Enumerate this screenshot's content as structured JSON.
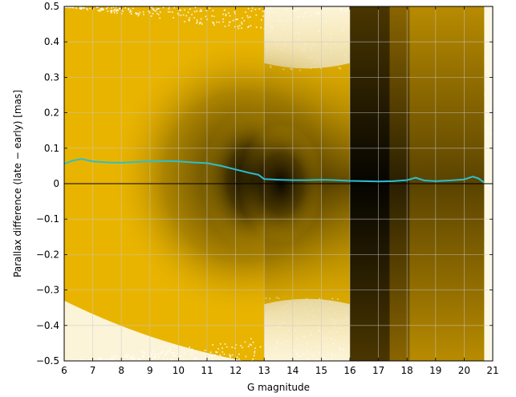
{
  "chart_data": {
    "type": "heatmap",
    "title": "",
    "xlabel": "G magnitude",
    "ylabel": "Parallax difference (late − early) [mas]",
    "xlim": [
      6,
      21
    ],
    "ylim": [
      -0.5,
      0.5
    ],
    "x_ticks": [
      6,
      7,
      8,
      9,
      10,
      11,
      12,
      13,
      14,
      15,
      16,
      17,
      18,
      19,
      20,
      21
    ],
    "x_tick_labels": [
      "6",
      "7",
      "8",
      "9",
      "10",
      "11",
      "12",
      "13",
      "14",
      "15",
      "16",
      "17",
      "18",
      "19",
      "20",
      "21"
    ],
    "y_ticks": [
      -0.5,
      -0.4,
      -0.3,
      -0.2,
      -0.1,
      0,
      0.1,
      0.2,
      0.3,
      0.4,
      0.5
    ],
    "y_tick_labels": [
      "−0.5",
      "−0.4",
      "−0.3",
      "−0.2",
      "−0.1",
      "0",
      "0.1",
      "0.2",
      "0.3",
      "0.4",
      "0.5"
    ],
    "grid": true,
    "zero_line": 0,
    "colors": {
      "density_low": "#e9b400",
      "density_high": "#000000",
      "median_line": "#2bbfcf",
      "grid": "#c8c8c8",
      "zero_line": "#000000"
    },
    "series": [
      {
        "type": "line",
        "x": [
          6.0,
          6.3,
          6.6,
          7.0,
          7.5,
          8.0,
          8.5,
          9.0,
          9.5,
          10.0,
          10.5,
          11.0,
          11.5,
          12.0,
          12.5,
          12.8,
          13.0,
          13.5,
          14.0,
          14.5,
          15.0,
          15.5,
          16.0,
          16.5,
          17.0,
          17.5,
          18.0,
          18.3,
          18.6,
          19.0,
          19.5,
          20.0,
          20.3,
          20.5,
          20.7
        ],
        "y": [
          0.056,
          0.065,
          0.07,
          0.063,
          0.06,
          0.059,
          0.061,
          0.063,
          0.064,
          0.063,
          0.06,
          0.058,
          0.05,
          0.04,
          0.03,
          0.025,
          0.013,
          0.011,
          0.01,
          0.01,
          0.011,
          0.01,
          0.008,
          0.007,
          0.006,
          0.007,
          0.01,
          0.017,
          0.009,
          0.007,
          0.009,
          0.012,
          0.02,
          0.015,
          0.003
        ]
      }
    ],
    "density_regions": [
      {
        "x": [
          6,
          13
        ],
        "density": "high, peaking near G 12.5 and parallax difference 0"
      },
      {
        "x": [
          13,
          16
        ],
        "density": "moderate, broad"
      },
      {
        "x": [
          16,
          17.5
        ],
        "density": "very high, dark vertical band"
      },
      {
        "x": [
          17.5,
          20.8
        ],
        "density": "high, fading toward G 21"
      }
    ]
  }
}
